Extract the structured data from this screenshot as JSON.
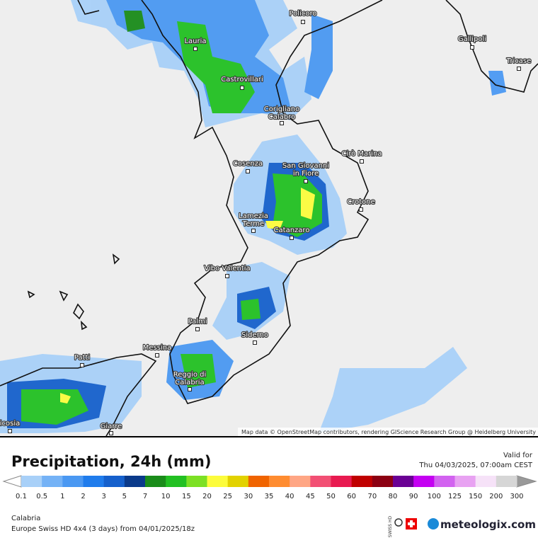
{
  "map": {
    "cities": [
      {
        "lines": [
          "Policoro"
        ]
      },
      {
        "lines": [
          "Gallipoli"
        ]
      },
      {
        "lines": [
          "Lauria"
        ]
      },
      {
        "lines": [
          "Tricase"
        ]
      },
      {
        "lines": [
          "Castrovillari"
        ]
      },
      {
        "lines": [
          "Corigliano",
          "Calabro"
        ]
      },
      {
        "lines": [
          "Cirò Marina"
        ]
      },
      {
        "lines": [
          "Cosenza"
        ]
      },
      {
        "lines": [
          "San Giovanni",
          "in Fiore"
        ]
      },
      {
        "lines": [
          "Crotone"
        ]
      },
      {
        "lines": [
          "Lamezia",
          "Terme"
        ]
      },
      {
        "lines": [
          "Catanzaro"
        ]
      },
      {
        "lines": [
          "Vibo Valentia"
        ]
      },
      {
        "lines": [
          "Palmi"
        ]
      },
      {
        "lines": [
          "Siderno"
        ]
      },
      {
        "lines": [
          "Messina"
        ]
      },
      {
        "lines": [
          "Patti"
        ]
      },
      {
        "lines": [
          "Reggio di",
          "Calabria"
        ]
      },
      {
        "lines": [
          "Giarre"
        ]
      },
      {
        "lines": [
          "icosia"
        ]
      }
    ],
    "attribution": "Map data © OpenStreetMap contributors, rendering GIScience Research Group @ Heidelberg University"
  },
  "header": {
    "title": "Precipitation, 24h (mm)",
    "valid_label": "Valid for",
    "valid_time": "Thu 04/03/2025, 07:00am CEST"
  },
  "legend": {
    "ticks": [
      "0.1",
      "0.5",
      "1",
      "2",
      "3",
      "5",
      "7",
      "10",
      "15",
      "20",
      "25",
      "30",
      "35",
      "40",
      "45",
      "50",
      "60",
      "70",
      "80",
      "90",
      "100",
      "125",
      "150",
      "200",
      "300"
    ],
    "colors": [
      "#a8d0f8",
      "#74b2f6",
      "#4a98f2",
      "#1f7cec",
      "#1560cc",
      "#0a3a8a",
      "#1a8c1a",
      "#22c022",
      "#7ce024",
      "#fcfc3c",
      "#e2d200",
      "#f06400",
      "#ff8c30",
      "#ffa684",
      "#f25074",
      "#e81a50",
      "#c00000",
      "#8c0012",
      "#6a0094",
      "#c400f2",
      "#d262f0",
      "#e8a2f2",
      "#f6e2f8",
      "#d6d6d6"
    ]
  },
  "footer": {
    "region": "Calabria",
    "model": "Europe Swiss HD 4x4 (3 days) from  04/01/2025/18z",
    "badge": "SWISS HD",
    "brand": "meteologix.com"
  }
}
